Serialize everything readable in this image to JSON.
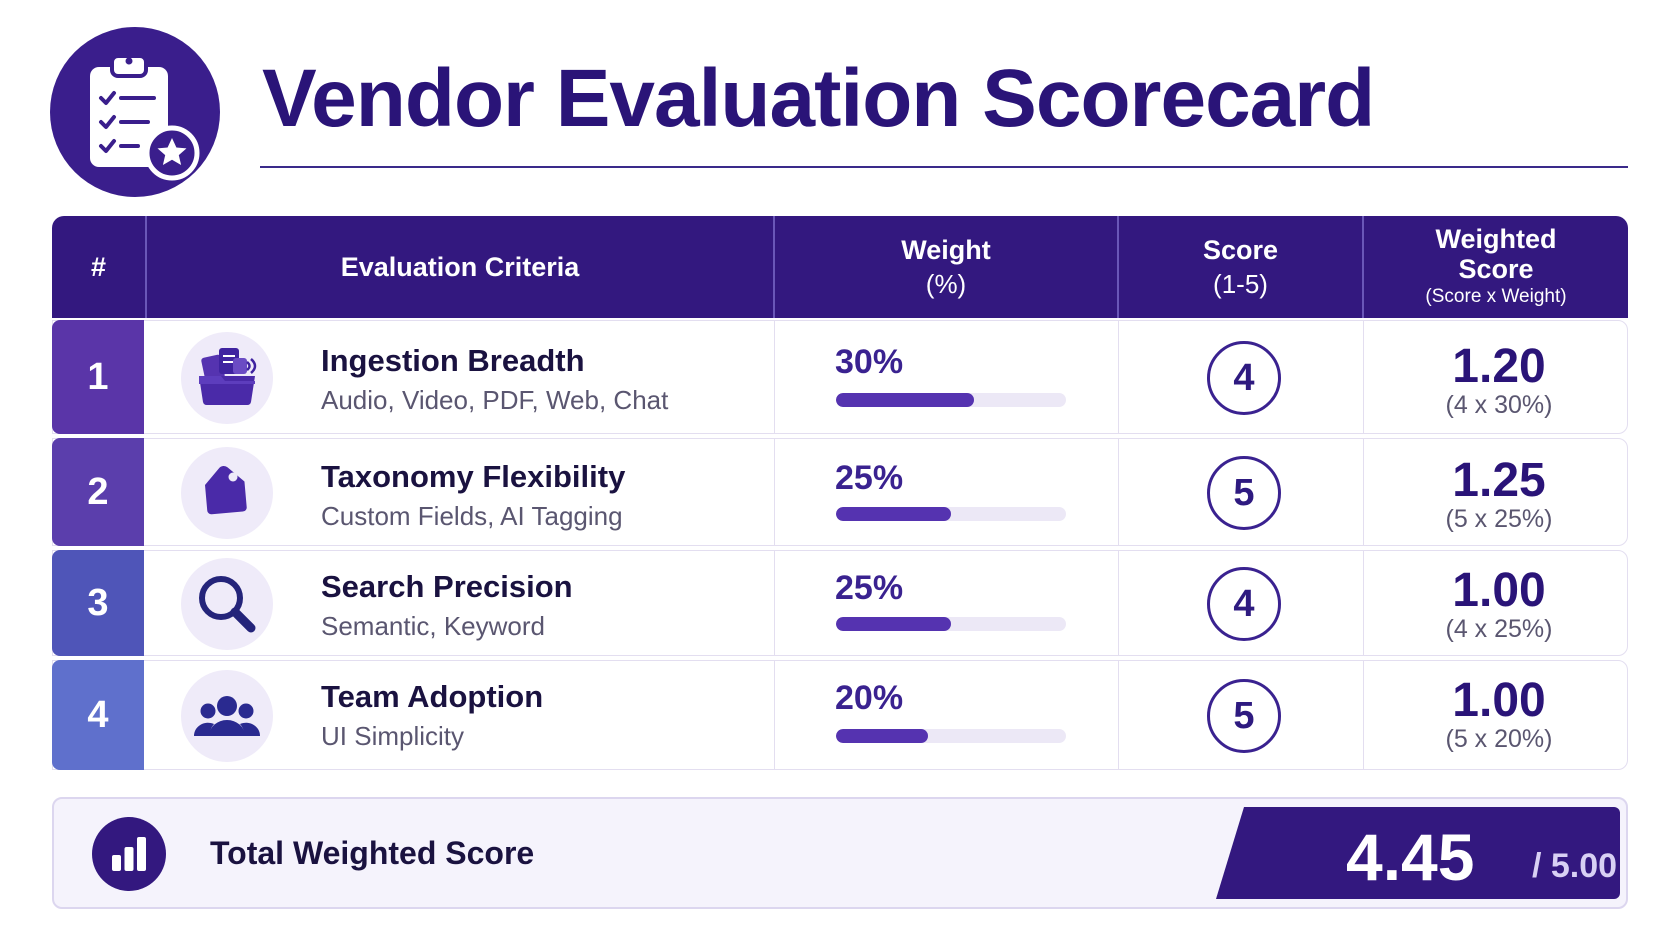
{
  "header": {
    "title": "Vendor Evaluation Scorecard",
    "logo_icon": "clipboard-checklist-star-icon"
  },
  "table": {
    "columns": {
      "num": "#",
      "criteria": "Evaluation Criteria",
      "weight": "Weight",
      "weight_sub": "(%)",
      "score": "Score",
      "score_sub": "(1-5)",
      "weighted": "Weighted",
      "weighted_line2": "Score",
      "weighted_sub": "(Score x Weight)"
    },
    "rows": [
      {
        "num": "1",
        "icon": "media-folder-icon",
        "name": "Ingestion Breadth",
        "desc": "Audio, Video, PDF, Web, Chat",
        "weight": "30%",
        "weight_fraction": 0.3,
        "score": "4",
        "weighted": "1.20",
        "formula": "(4 x 30%)"
      },
      {
        "num": "2",
        "icon": "tag-icon",
        "name": "Taxonomy Flexibility",
        "desc": "Custom Fields, AI Tagging",
        "weight": "25%",
        "weight_fraction": 0.25,
        "score": "5",
        "weighted": "1.25",
        "formula": "(5 x 25%)"
      },
      {
        "num": "3",
        "icon": "magnifier-icon",
        "name": "Search Precision",
        "desc": "Semantic, Keyword",
        "weight": "25%",
        "weight_fraction": 0.25,
        "score": "4",
        "weighted": "1.00",
        "formula": "(4 x 25%)"
      },
      {
        "num": "4",
        "icon": "team-icon",
        "name": "Team Adoption",
        "desc": "UI Simplicity",
        "weight": "20%",
        "weight_fraction": 0.2,
        "score": "5",
        "weighted": "1.00",
        "formula": "(5 x 20%)"
      }
    ]
  },
  "total": {
    "label": "Total Weighted Score",
    "value": "4.45",
    "max": "/ 5.00",
    "icon": "bar-chart-icon"
  },
  "colors": {
    "header_bg": "#33187f",
    "title": "#2a1478",
    "row_num_1": "#5a35a8",
    "row_num_2": "#5b3eac",
    "row_num_3": "#4f55b8",
    "row_num_4": "#5f70cc",
    "bar_fill": "#5533b0",
    "bar_track": "#ece8f6"
  }
}
